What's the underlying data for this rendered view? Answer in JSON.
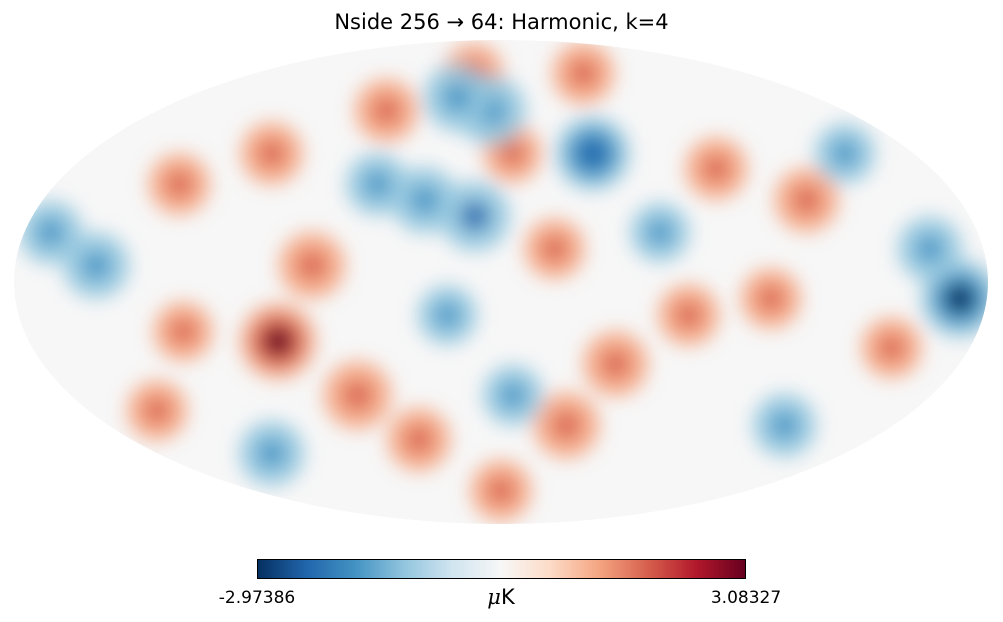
{
  "title": "Nside 256 → 64: Harmonic, k=4",
  "colorbar": {
    "min_label": "-2.97386",
    "max_label": "3.08327",
    "unit_symbol": "μ",
    "unit_text": "K",
    "colormap": [
      "#053061",
      "#2166ac",
      "#4393c3",
      "#92c5de",
      "#d1e5f0",
      "#f7f7f7",
      "#fddbc7",
      "#f4a582",
      "#d6604d",
      "#b2182b",
      "#67001f"
    ]
  },
  "map": {
    "projection": "mollweide",
    "warm_blobs": [
      {
        "lon": -120,
        "lat": 25,
        "amp": 1.4
      },
      {
        "lon": -90,
        "lat": 35,
        "amp": 1.2
      },
      {
        "lon": -100,
        "lat": -5,
        "amp": 1.0
      },
      {
        "lon": -70,
        "lat": -10,
        "amp": 1.1
      },
      {
        "lon": -45,
        "lat": -25,
        "amp": 1.5
      },
      {
        "lon": -30,
        "lat": -45,
        "amp": 1.6
      },
      {
        "lon": -20,
        "lat": 10,
        "amp": 1.0
      },
      {
        "lon": 20,
        "lat": 70,
        "amp": 1.0
      },
      {
        "lon": 60,
        "lat": 55,
        "amp": 1.3
      },
      {
        "lon": 100,
        "lat": 40,
        "amp": 1.2
      },
      {
        "lon": 130,
        "lat": 30,
        "amp": 1.1
      },
      {
        "lon": 70,
        "lat": 5,
        "amp": 1.6
      },
      {
        "lon": 85,
        "lat": -18,
        "amp": 2.6
      },
      {
        "lon": 60,
        "lat": -35,
        "amp": 1.8
      },
      {
        "lon": 40,
        "lat": -50,
        "amp": 1.3
      },
      {
        "lon": -150,
        "lat": -20,
        "amp": 1.0
      },
      {
        "lon": 150,
        "lat": -40,
        "amp": 1.0
      },
      {
        "lon": -60,
        "lat": 70,
        "amp": 1.2
      },
      {
        "lon": 0,
        "lat": -70,
        "amp": 1.1
      },
      {
        "lon": 120,
        "lat": -15,
        "amp": 0.9
      },
      {
        "lon": -5,
        "lat": 40,
        "amp": 0.8
      }
    ],
    "cold_blobs": [
      {
        "lon": 5,
        "lat": 55,
        "amp": 1.9
      },
      {
        "lon": 25,
        "lat": 60,
        "amp": 1.7
      },
      {
        "lon": -40,
        "lat": 40,
        "amp": 2.4
      },
      {
        "lon": 10,
        "lat": 20,
        "amp": 2.0
      },
      {
        "lon": 30,
        "lat": 25,
        "amp": 1.6
      },
      {
        "lon": -170,
        "lat": -5,
        "amp": 2.8
      },
      {
        "lon": -160,
        "lat": 10,
        "amp": 1.4
      },
      {
        "lon": 150,
        "lat": 5,
        "amp": 1.6
      },
      {
        "lon": 170,
        "lat": 15,
        "amp": 1.3
      },
      {
        "lon": 120,
        "lat": -55,
        "amp": 1.5
      },
      {
        "lon": -130,
        "lat": -45,
        "amp": 1.3
      },
      {
        "lon": -5,
        "lat": -35,
        "amp": 1.0
      },
      {
        "lon": 50,
        "lat": 30,
        "amp": 1.2
      },
      {
        "lon": -150,
        "lat": 40,
        "amp": 1.0
      },
      {
        "lon": 20,
        "lat": -10,
        "amp": 0.9
      },
      {
        "lon": -60,
        "lat": 15,
        "amp": 0.9
      }
    ]
  }
}
